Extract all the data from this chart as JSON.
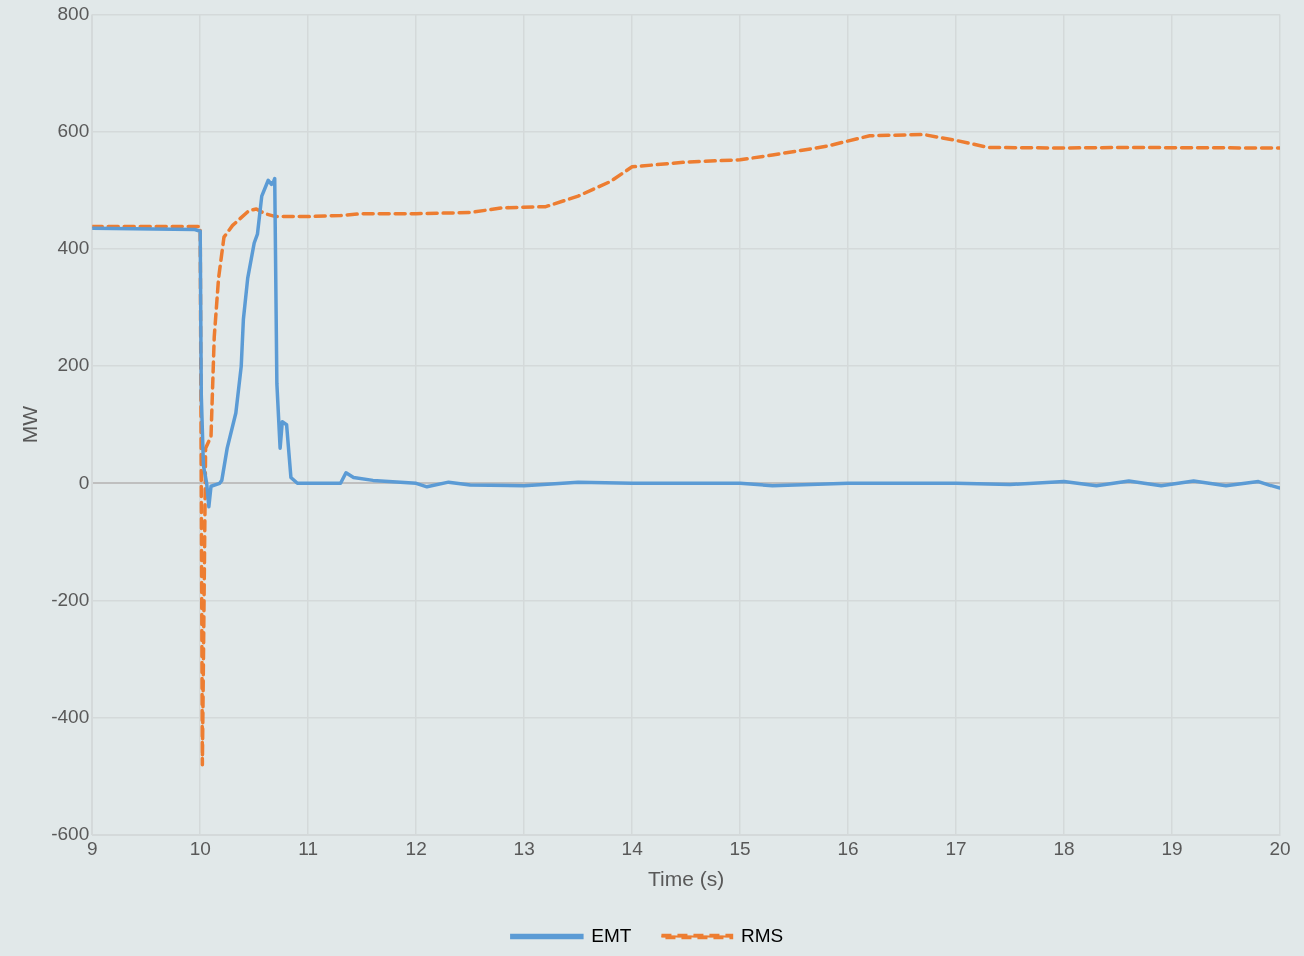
{
  "chart_data": {
    "type": "line",
    "xlabel": "Time (s)",
    "ylabel": "MW",
    "xlim": [
      9,
      20
    ],
    "xticks": [
      9,
      10,
      11,
      12,
      13,
      14,
      15,
      16,
      17,
      18,
      19,
      20
    ],
    "ylim": [
      -600,
      800
    ],
    "yticks": [
      -600,
      -400,
      -200,
      0,
      200,
      400,
      600,
      800
    ],
    "grid": true,
    "legend": "bottom",
    "marker": "none",
    "series": [
      {
        "name": "EMT",
        "color": "#5b9bd5",
        "line_style": "solid",
        "x": [
          9,
          9.95,
          10,
          10.01,
          10.03,
          10.06,
          10.08,
          10.1,
          10.18,
          10.2,
          10.25,
          10.33,
          10.38,
          10.4,
          10.44,
          10.5,
          10.53,
          10.57,
          10.63,
          10.66,
          10.68,
          10.69,
          10.71,
          10.74,
          10.76,
          10.8,
          10.84,
          10.9,
          11,
          11.3,
          11.35,
          11.42,
          11.6,
          12,
          12.1,
          12.3,
          12.5,
          13,
          13.5,
          14,
          15,
          15.3,
          16,
          17,
          17.5,
          18,
          18.3,
          18.6,
          18.9,
          19.2,
          19.5,
          19.8,
          19.9,
          20
        ],
        "values": [
          435,
          433,
          430,
          150,
          30,
          0,
          -40,
          -5,
          0,
          5,
          60,
          120,
          200,
          280,
          350,
          410,
          425,
          490,
          517,
          510,
          515,
          520,
          170,
          60,
          105,
          100,
          10,
          0,
          0,
          0,
          18,
          10,
          5,
          0,
          -6,
          2,
          -3,
          -4,
          2,
          0,
          0,
          -4,
          0,
          0,
          -2,
          3,
          -4,
          4,
          -4,
          4,
          -4,
          3,
          -3,
          -8
        ]
      },
      {
        "name": "RMS",
        "color": "#ed7d31",
        "line_style": "dashed",
        "x": [
          9,
          10,
          10.01,
          10.02,
          10.03,
          10.05,
          10.1,
          10.13,
          10.17,
          10.22,
          10.3,
          10.45,
          10.52,
          10.6,
          10.7,
          11,
          11.3,
          11.5,
          12,
          12.5,
          12.8,
          13.2,
          13.5,
          13.8,
          14,
          14.5,
          15,
          15.3,
          15.8,
          16.2,
          16.7,
          17,
          17.3,
          18,
          18.5,
          20
        ],
        "values": [
          438,
          438,
          0,
          -480,
          -300,
          60,
          80,
          250,
          350,
          420,
          440,
          465,
          468,
          460,
          455,
          455,
          457,
          460,
          460,
          462,
          470,
          472,
          490,
          515,
          540,
          548,
          552,
          560,
          575,
          593,
          595,
          585,
          573,
          572,
          573,
          572
        ]
      }
    ]
  }
}
